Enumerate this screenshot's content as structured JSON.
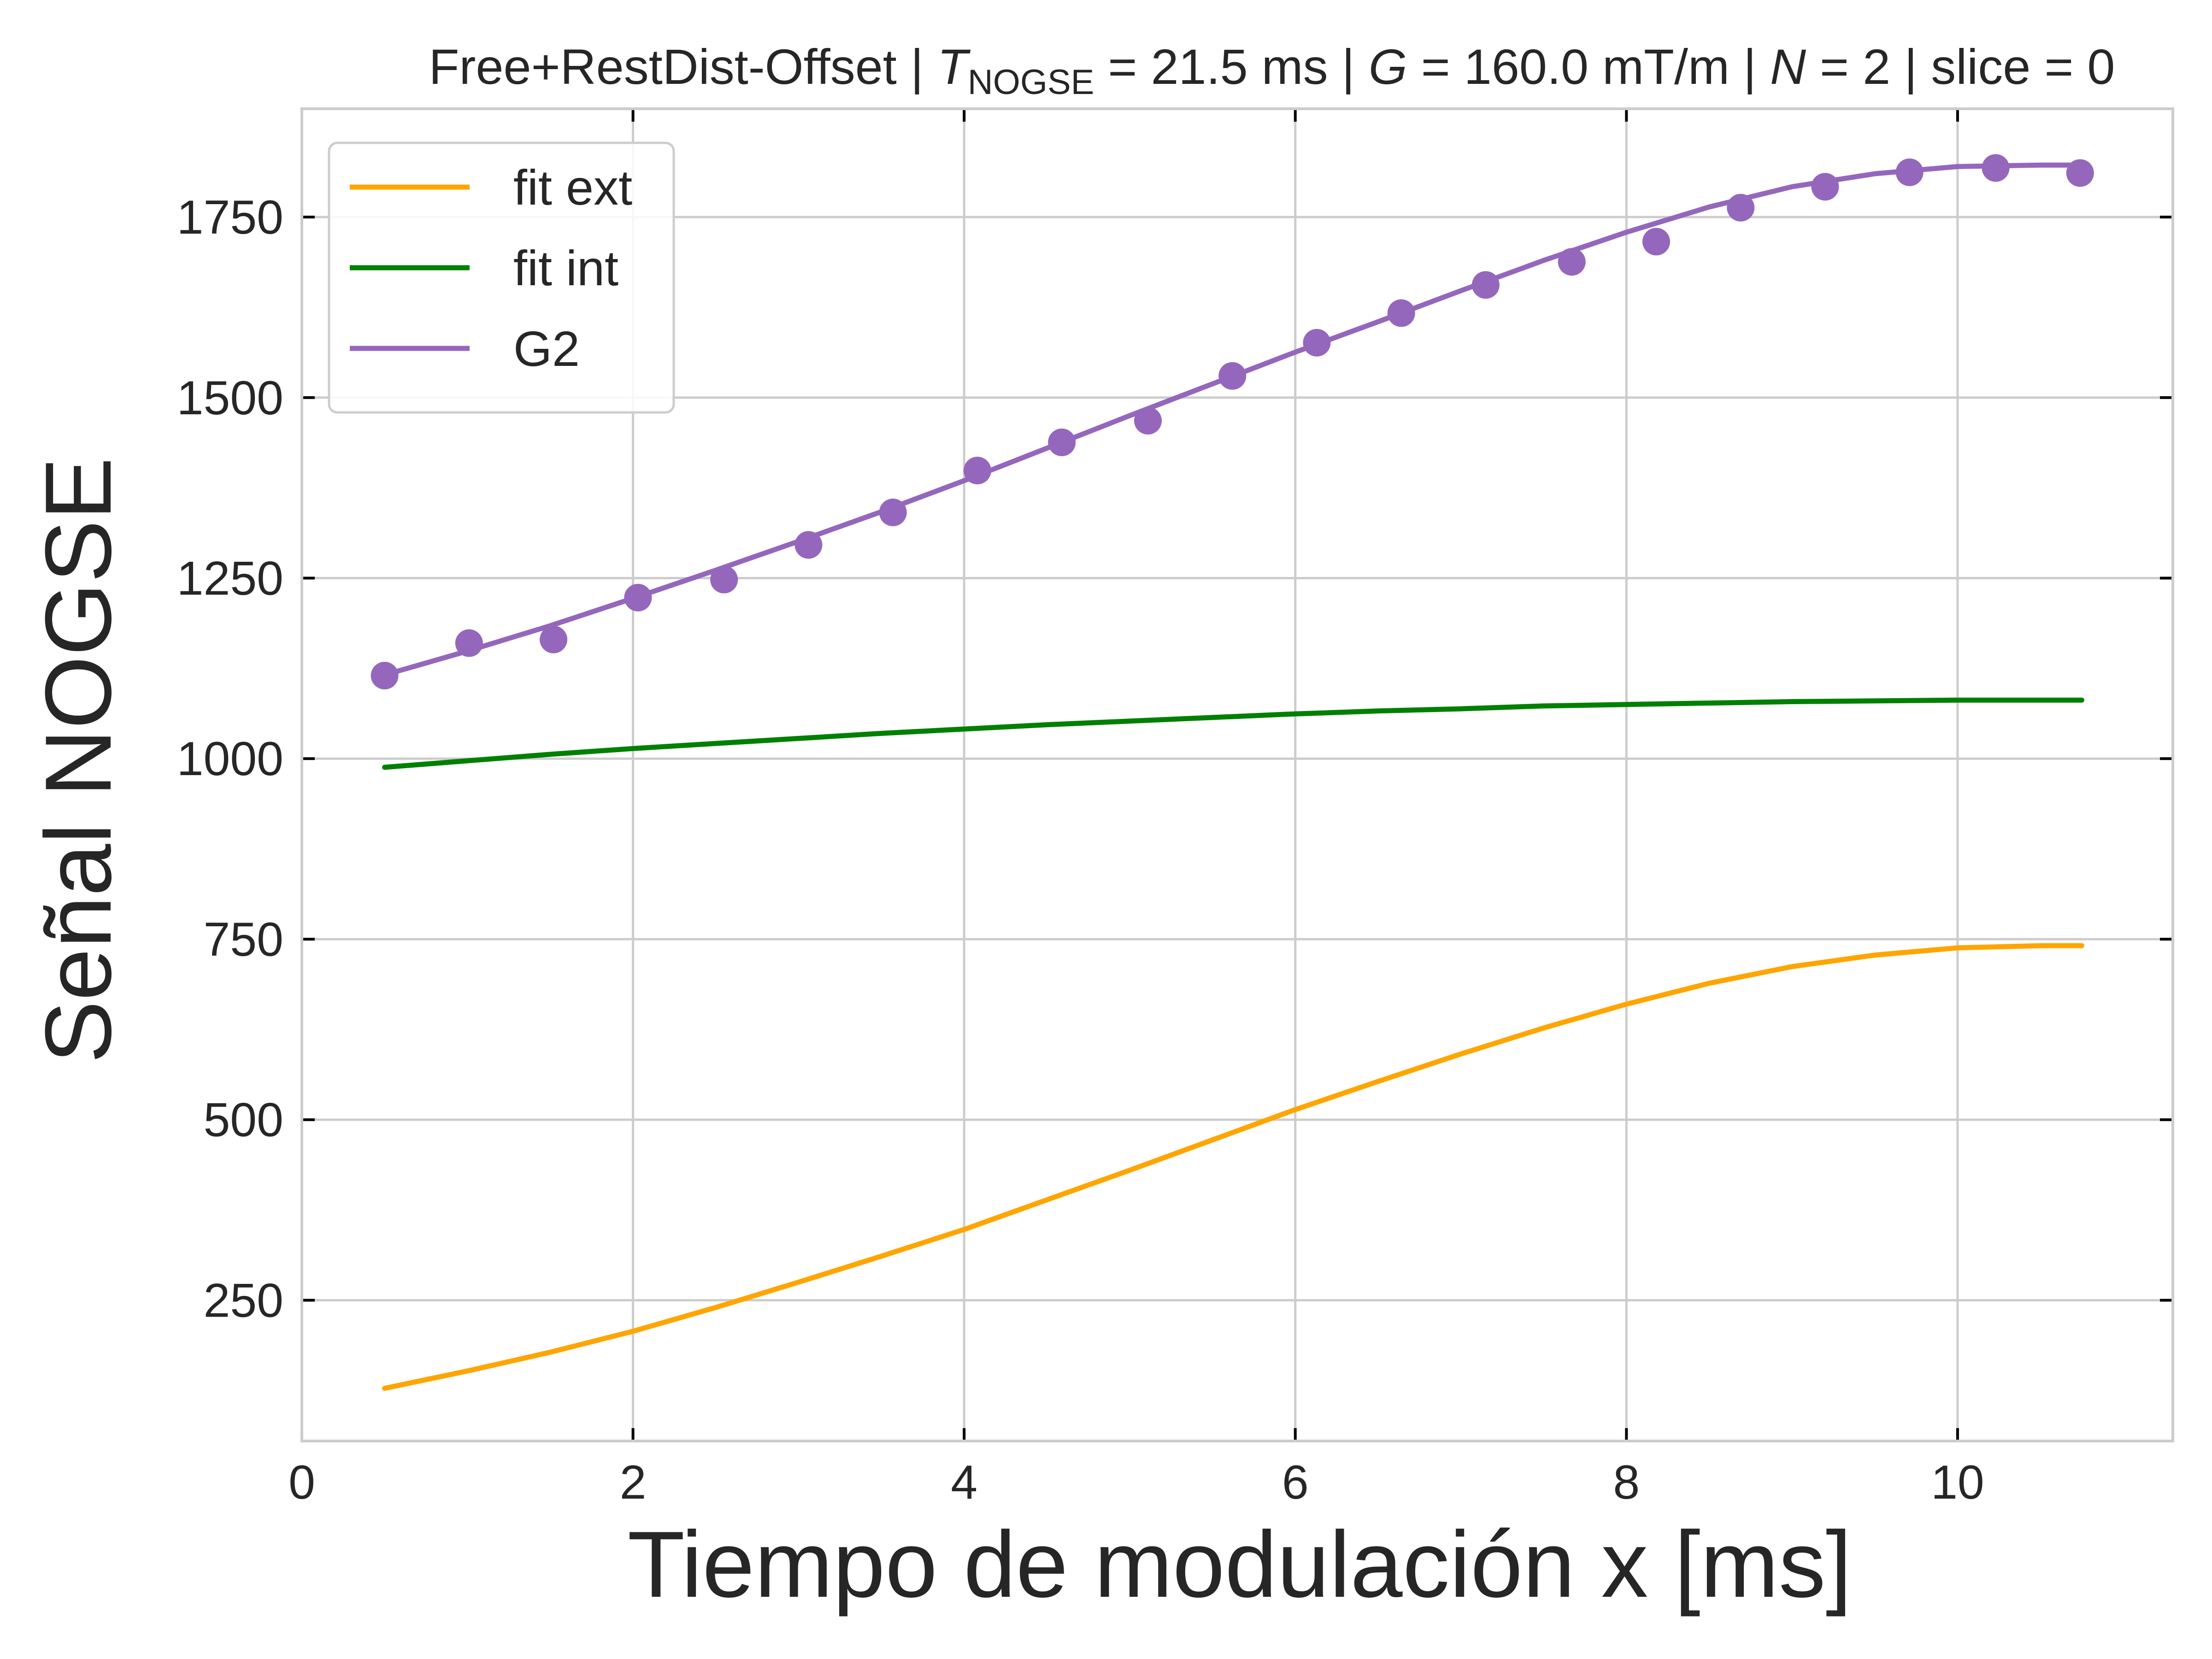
{
  "chart_data": {
    "type": "line",
    "title": {
      "prefix": "Free+RestDist-Offset | ",
      "t_symbol": "T",
      "t_subscript": "NOGSE",
      "t_value": " = 21.5 ms | ",
      "g_symbol": "G",
      "g_value": " = 160.0 mT/m | ",
      "n_symbol": "N",
      "n_value": " = 2 | slice = 0"
    },
    "xlabel": "Tiempo de modulación x [ms]",
    "ylabel": "Señal NOGSE",
    "xlim": [
      0,
      11.3
    ],
    "ylim": [
      55,
      1900
    ],
    "xticks": [
      0,
      2,
      4,
      6,
      8,
      10
    ],
    "yticks": [
      250,
      500,
      750,
      1000,
      1250,
      1500,
      1750
    ],
    "grid": true,
    "legend_position": "upper-left",
    "colors": {
      "fit_ext": "#ffa500",
      "fit_int": "#008000",
      "g2": "#9467bd",
      "grid": "#cccccc",
      "spine": "#cccccc"
    },
    "series": [
      {
        "name": "fit ext",
        "kind": "line",
        "x": [
          0.5,
          1.0,
          1.5,
          2.0,
          2.5,
          3.0,
          3.5,
          4.0,
          4.5,
          5.0,
          5.5,
          6.0,
          6.5,
          7.0,
          7.5,
          8.0,
          8.5,
          9.0,
          9.5,
          10.0,
          10.5,
          10.75
        ],
        "y": [
          128,
          152,
          178,
          207,
          240,
          275,
          311,
          348,
          389,
          430,
          472,
          514,
          553,
          591,
          627,
          660,
          689,
          712,
          728,
          738,
          741,
          741
        ]
      },
      {
        "name": "fit int",
        "kind": "line",
        "x": [
          0.5,
          1.0,
          1.5,
          2.0,
          2.5,
          3.0,
          3.5,
          4.0,
          4.5,
          5.0,
          5.5,
          6.0,
          6.5,
          7.0,
          7.5,
          8.0,
          8.5,
          9.0,
          9.5,
          10.0,
          10.5,
          10.75
        ],
        "y": [
          988,
          997,
          1006,
          1014,
          1021,
          1028,
          1035,
          1041,
          1047,
          1052,
          1057,
          1062,
          1066,
          1069,
          1073,
          1075,
          1077,
          1079,
          1080,
          1081,
          1081,
          1081
        ]
      },
      {
        "name": "G2",
        "kind": "line",
        "x": [
          0.5,
          1.0,
          1.5,
          2.0,
          2.5,
          3.0,
          3.5,
          4.0,
          4.5,
          5.0,
          5.5,
          6.0,
          6.5,
          7.0,
          7.5,
          8.0,
          8.5,
          9.0,
          9.5,
          10.0,
          10.5,
          10.75
        ],
        "y": [
          1116,
          1149,
          1184,
          1222,
          1261,
          1301,
          1342,
          1385,
          1430,
          1475,
          1519,
          1563,
          1605,
          1648,
          1690,
          1729,
          1764,
          1792,
          1810,
          1820,
          1822,
          1822
        ]
      },
      {
        "name": "",
        "kind": "scatter",
        "color_key": "g2",
        "x": [
          0.5,
          1.01,
          1.52,
          2.03,
          2.55,
          3.06,
          3.57,
          4.08,
          4.59,
          5.11,
          5.62,
          6.13,
          6.64,
          7.15,
          7.67,
          8.18,
          8.69,
          9.2,
          9.71,
          10.23,
          10.74
        ],
        "y": [
          1115,
          1160,
          1165,
          1223,
          1248,
          1296,
          1341,
          1399,
          1438,
          1468,
          1530,
          1576,
          1617,
          1656,
          1688,
          1716,
          1763,
          1792,
          1812,
          1818,
          1811
        ]
      }
    ]
  }
}
